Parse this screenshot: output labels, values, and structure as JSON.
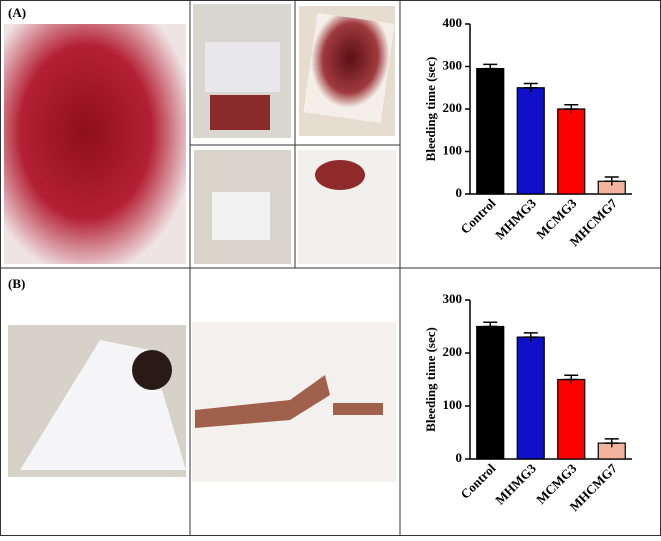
{
  "panel_labels": [
    "(A)",
    "(B)"
  ],
  "chart_data": [
    {
      "type": "bar",
      "ylabel": "Bleeding time (sec)",
      "categories": [
        "Control",
        "MHMG3",
        "MCMG3",
        "MHCMG7"
      ],
      "values": [
        295,
        250,
        200,
        30
      ],
      "errors": [
        10,
        10,
        10,
        10
      ],
      "colors": [
        "#000000",
        "#1010c8",
        "#ff0000",
        "#f2b49c"
      ],
      "ylim": [
        0,
        400
      ],
      "yticks": [
        0,
        100,
        200,
        300,
        400
      ]
    },
    {
      "type": "bar",
      "ylabel": "Bleeding time (sec)",
      "categories": [
        "Control",
        "MHMG3",
        "MCMG3",
        "MHCMG7"
      ],
      "values": [
        250,
        230,
        150,
        30
      ],
      "errors": [
        8,
        8,
        8,
        8
      ],
      "colors": [
        "#000000",
        "#1010c8",
        "#ff0000",
        "#f2b49c"
      ],
      "ylim": [
        0,
        300
      ],
      "yticks": [
        0,
        100,
        200,
        300
      ]
    }
  ]
}
